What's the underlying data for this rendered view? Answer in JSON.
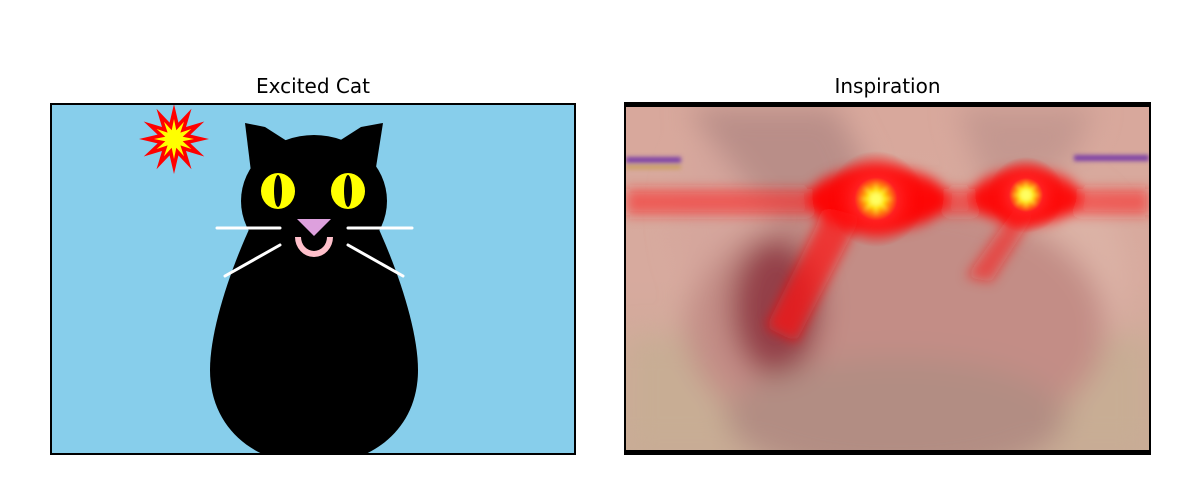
{
  "panels": [
    {
      "title": "Excited Cat",
      "background": "#87CEEB"
    },
    {
      "title": "Inspiration"
    }
  ],
  "colors": {
    "cat_body": "#000000",
    "cat_eyes": "#FFFF00",
    "cat_nose": "#DDA0DD",
    "cat_mouth": "#FFC0CB",
    "whiskers": "#FFFFFF",
    "burst_outer": "#FF0000",
    "burst_inner": "#FFFF00",
    "laser": "#FF0000"
  },
  "icons": [
    "explosion-burst-icon",
    "laser-eye-icon"
  ]
}
